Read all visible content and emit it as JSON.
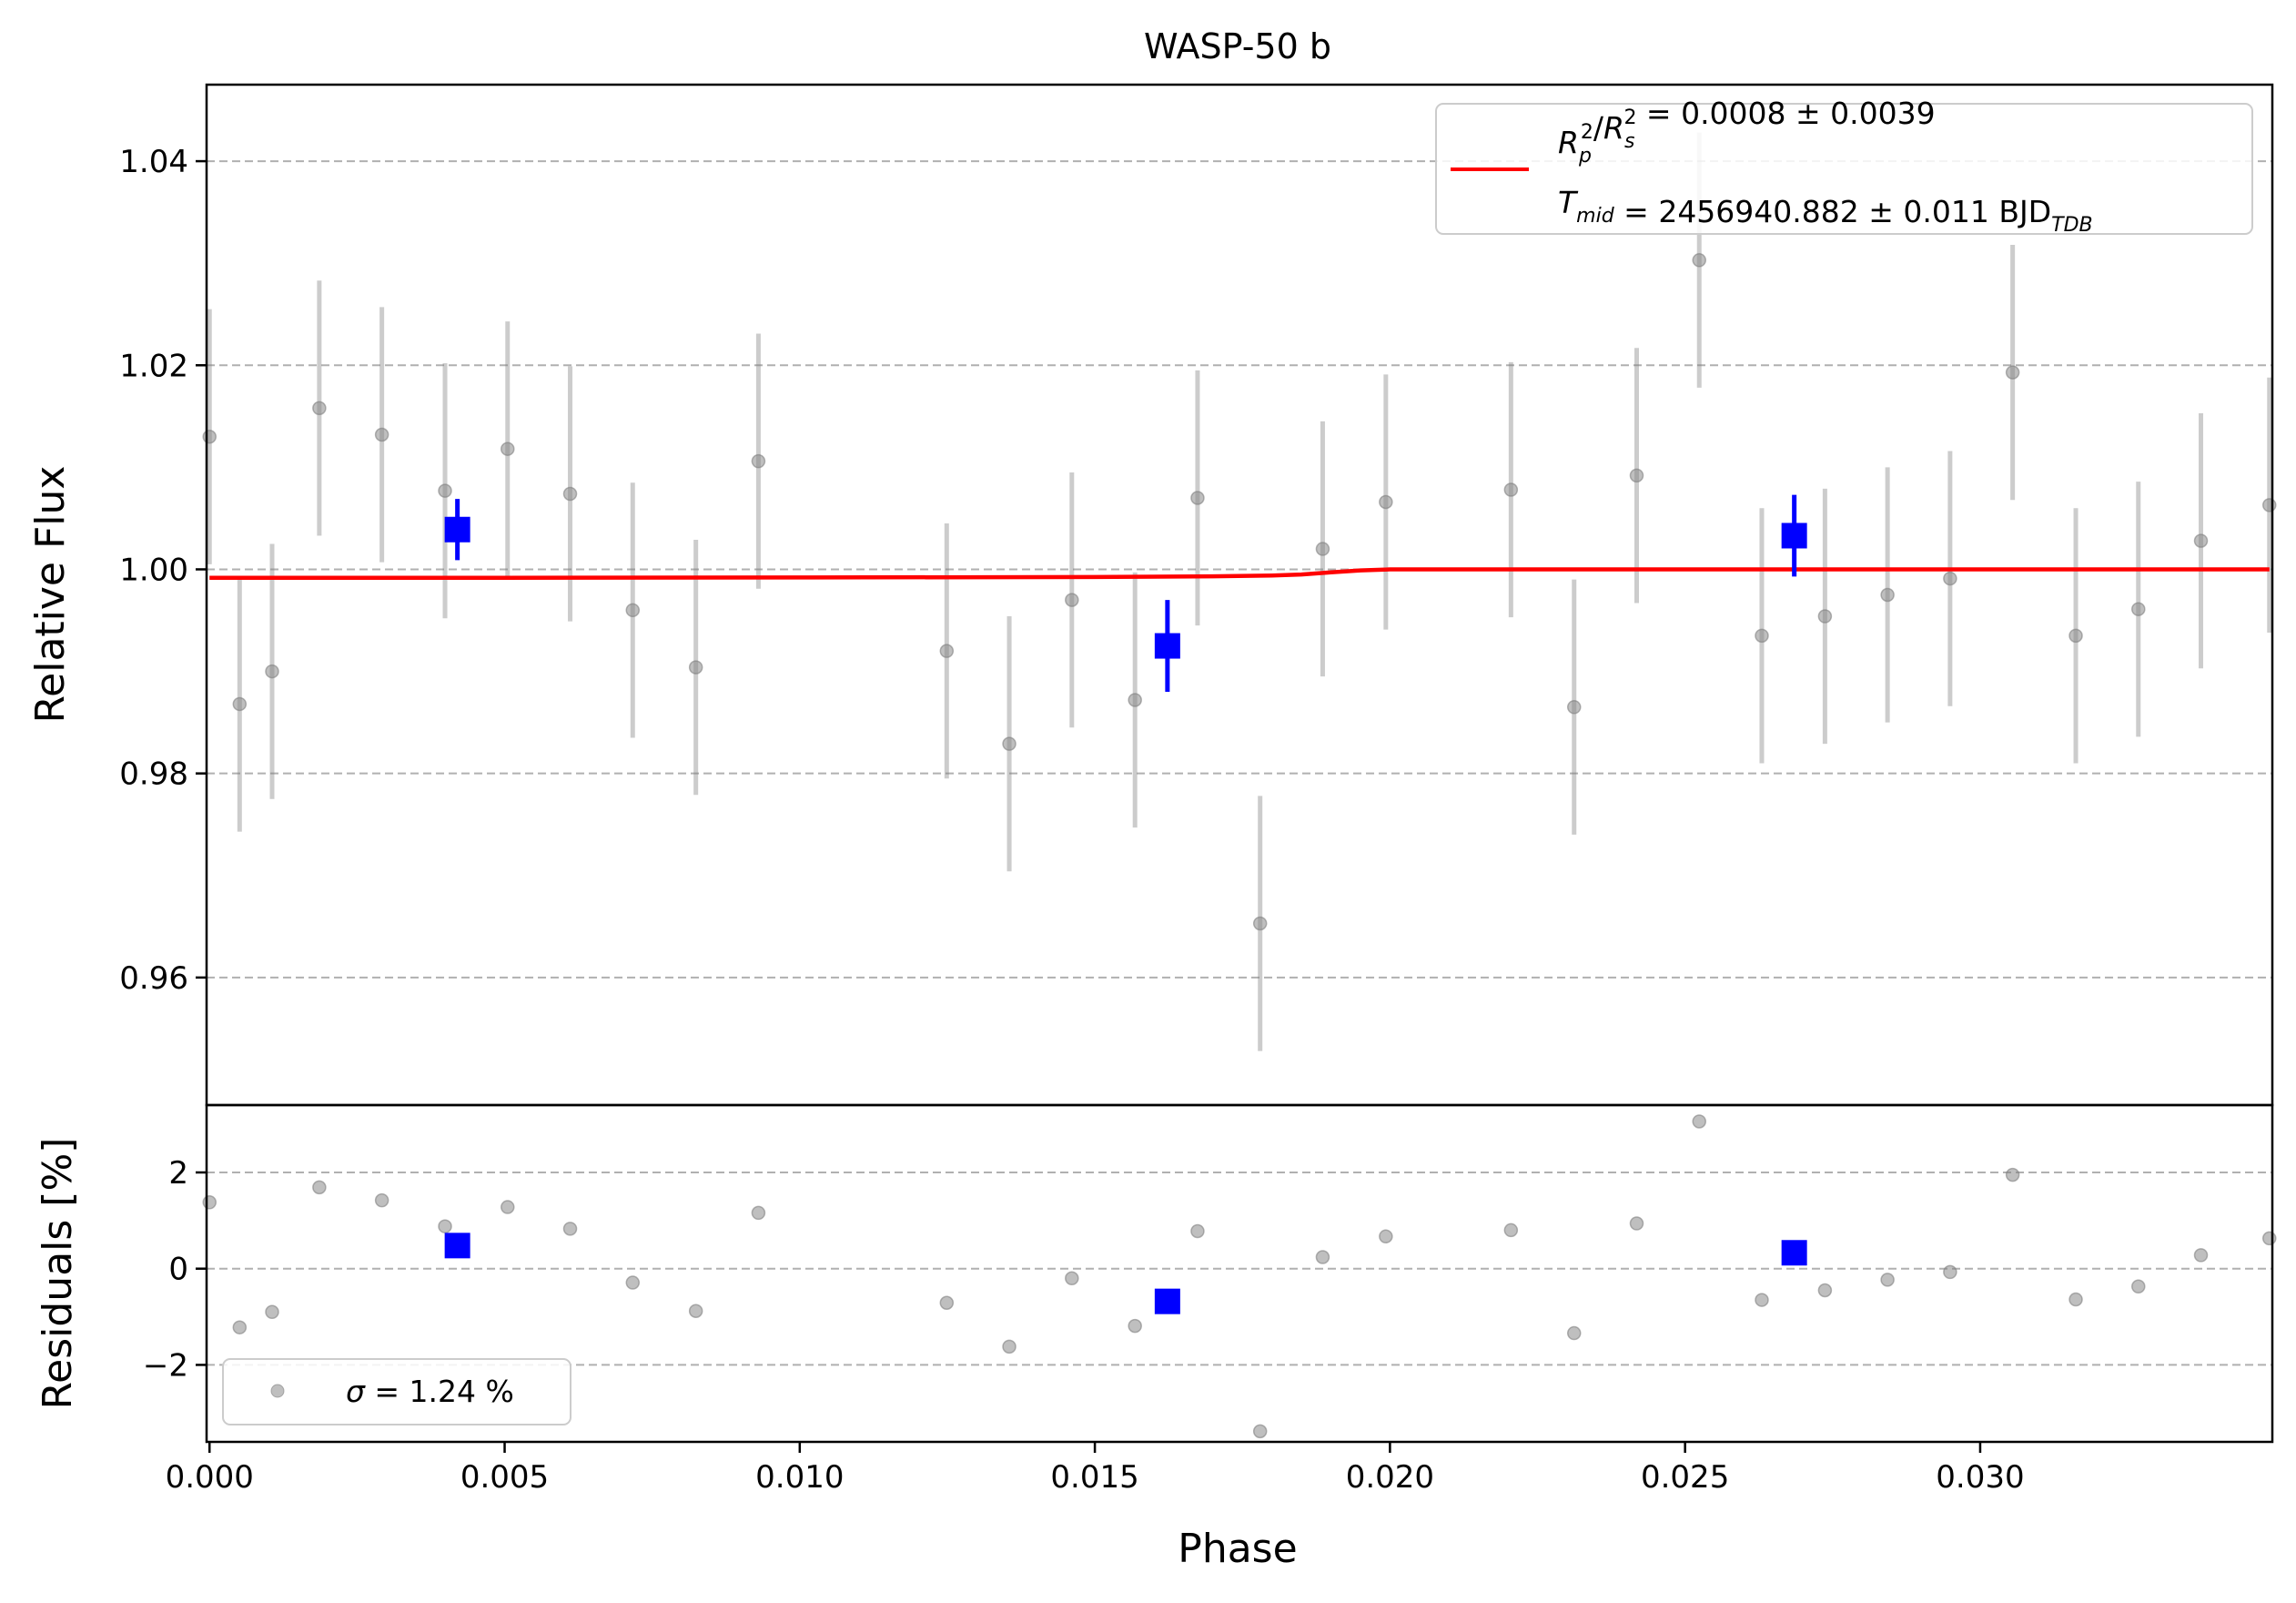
{
  "chart_data": {
    "type": "scatter",
    "title": "WASP-50 b",
    "xlabel": "Phase",
    "xlim": [
      -5e-05,
      0.03495
    ],
    "xticks": [
      0.0,
      0.005,
      0.01,
      0.015,
      0.02,
      0.025,
      0.03
    ],
    "xtick_labels": [
      "0.000",
      "0.005",
      "0.010",
      "0.015",
      "0.020",
      "0.025",
      "0.030"
    ],
    "grid": "horizontal dashed",
    "top_panel": {
      "ylabel": "Relative Flux",
      "ylim": [
        0.9475,
        1.0475
      ],
      "yticks": [
        0.96,
        0.98,
        1.0,
        1.02,
        1.04
      ],
      "ytick_labels": [
        "0.96",
        "0.98",
        "1.00",
        "1.02",
        "1.04"
      ],
      "legend": {
        "placement": "top-right",
        "model_label": "R_p^2/R_s^2 = 0.0008 ± 0.0039",
        "tmid_label": "T_mid = 2456940.882 ± 0.011 BJD_TDB"
      },
      "raw_color": "#808080",
      "binned_color": "#0000ff",
      "model_color": "#ff0000",
      "raw_points": [
        {
          "x": 0.0,
          "y": 1.013,
          "err": 0.0125
        },
        {
          "x": 0.00051,
          "y": 0.9868,
          "err": 0.0125
        },
        {
          "x": 0.00106,
          "y": 0.99,
          "err": 0.0125
        },
        {
          "x": 0.00186,
          "y": 1.0158,
          "err": 0.0125
        },
        {
          "x": 0.00292,
          "y": 1.0132,
          "err": 0.0125
        },
        {
          "x": 0.00399,
          "y": 1.0077,
          "err": 0.0125
        },
        {
          "x": 0.00505,
          "y": 1.0118,
          "err": 0.0125
        },
        {
          "x": 0.00611,
          "y": 1.0074,
          "err": 0.0125
        },
        {
          "x": 0.00717,
          "y": 0.996,
          "err": 0.0125
        },
        {
          "x": 0.00824,
          "y": 0.9904,
          "err": 0.0125
        },
        {
          "x": 0.0093,
          "y": 1.0106,
          "err": 0.0125
        },
        {
          "x": 0.01249,
          "y": 0.992,
          "err": 0.0125
        },
        {
          "x": 0.01355,
          "y": 0.9829,
          "err": 0.0125
        },
        {
          "x": 0.01461,
          "y": 0.997,
          "err": 0.0125
        },
        {
          "x": 0.01568,
          "y": 0.9872,
          "err": 0.0125
        },
        {
          "x": 0.01674,
          "y": 1.007,
          "err": 0.0125
        },
        {
          "x": 0.0178,
          "y": 0.9653,
          "err": 0.0125
        },
        {
          "x": 0.01886,
          "y": 1.002,
          "err": 0.0125
        },
        {
          "x": 0.01993,
          "y": 1.0066,
          "err": 0.0125
        },
        {
          "x": 0.02205,
          "y": 1.0078,
          "err": 0.0125
        },
        {
          "x": 0.02312,
          "y": 0.9865,
          "err": 0.0125
        },
        {
          "x": 0.02418,
          "y": 1.0092,
          "err": 0.0125
        },
        {
          "x": 0.02524,
          "y": 1.0303,
          "err": 0.0125
        },
        {
          "x": 0.0263,
          "y": 0.9935,
          "err": 0.0125
        },
        {
          "x": 0.02737,
          "y": 0.9954,
          "err": 0.0125
        },
        {
          "x": 0.02843,
          "y": 0.9975,
          "err": 0.0125
        },
        {
          "x": 0.02949,
          "y": 0.9991,
          "err": 0.0125
        },
        {
          "x": 0.03055,
          "y": 1.0193,
          "err": 0.0125
        },
        {
          "x": 0.03162,
          "y": 0.9935,
          "err": 0.0125
        },
        {
          "x": 0.03268,
          "y": 0.9961,
          "err": 0.0125
        },
        {
          "x": 0.03374,
          "y": 1.0028,
          "err": 0.0125
        },
        {
          "x": 0.0349,
          "y": 1.0063,
          "err": 0.0125
        }
      ],
      "binned_points": [
        {
          "x": 0.0042,
          "y": 1.0039,
          "err": 0.003
        },
        {
          "x": 0.01623,
          "y": 0.9925,
          "err": 0.0045
        },
        {
          "x": 0.02685,
          "y": 1.0033,
          "err": 0.004
        }
      ],
      "model_curve": {
        "x": [
          0.0,
          0.005,
          0.01,
          0.015,
          0.017,
          0.018,
          0.0185,
          0.019,
          0.0195,
          0.02,
          0.025,
          0.03,
          0.0349
        ],
        "y": [
          0.99917,
          0.99918,
          0.9992,
          0.99925,
          0.99932,
          0.9994,
          0.9995,
          0.9997,
          0.9999,
          1.0,
          1.0,
          1.0,
          1.0
        ]
      }
    },
    "bottom_panel": {
      "ylabel": "Residuals [%]",
      "ylim": [
        -3.6,
        3.4
      ],
      "yticks": [
        -2,
        0,
        2
      ],
      "ytick_labels": [
        "−2",
        "0",
        "2"
      ],
      "legend": {
        "placement": "bottom-left",
        "label": "σ = 1.24 %"
      },
      "raw_points": [
        {
          "x": 0.0,
          "y": 1.38
        },
        {
          "x": 0.00051,
          "y": -1.22
        },
        {
          "x": 0.00106,
          "y": -0.9
        },
        {
          "x": 0.00186,
          "y": 1.69
        },
        {
          "x": 0.00292,
          "y": 1.42
        },
        {
          "x": 0.00399,
          "y": 0.88
        },
        {
          "x": 0.00505,
          "y": 1.28
        },
        {
          "x": 0.00611,
          "y": 0.83
        },
        {
          "x": 0.00717,
          "y": -0.29
        },
        {
          "x": 0.00824,
          "y": -0.88
        },
        {
          "x": 0.0093,
          "y": 1.16
        },
        {
          "x": 0.01249,
          "y": -0.71
        },
        {
          "x": 0.01355,
          "y": -1.62
        },
        {
          "x": 0.01461,
          "y": -0.2
        },
        {
          "x": 0.01568,
          "y": -1.19
        },
        {
          "x": 0.01674,
          "y": 0.78
        },
        {
          "x": 0.0178,
          "y": -3.38
        },
        {
          "x": 0.01886,
          "y": 0.24
        },
        {
          "x": 0.01993,
          "y": 0.67
        },
        {
          "x": 0.02205,
          "y": 0.8
        },
        {
          "x": 0.02312,
          "y": -1.34
        },
        {
          "x": 0.02418,
          "y": 0.94
        },
        {
          "x": 0.02524,
          "y": 3.06
        },
        {
          "x": 0.0263,
          "y": -0.65
        },
        {
          "x": 0.02737,
          "y": -0.45
        },
        {
          "x": 0.02843,
          "y": -0.23
        },
        {
          "x": 0.02949,
          "y": -0.07
        },
        {
          "x": 0.03055,
          "y": 1.95
        },
        {
          "x": 0.03162,
          "y": -0.64
        },
        {
          "x": 0.03268,
          "y": -0.37
        },
        {
          "x": 0.03374,
          "y": 0.28
        },
        {
          "x": 0.0349,
          "y": 0.63
        }
      ],
      "binned_points": [
        {
          "x": 0.0042,
          "y": 0.48
        },
        {
          "x": 0.01623,
          "y": -0.68
        },
        {
          "x": 0.02685,
          "y": 0.33
        }
      ]
    }
  }
}
